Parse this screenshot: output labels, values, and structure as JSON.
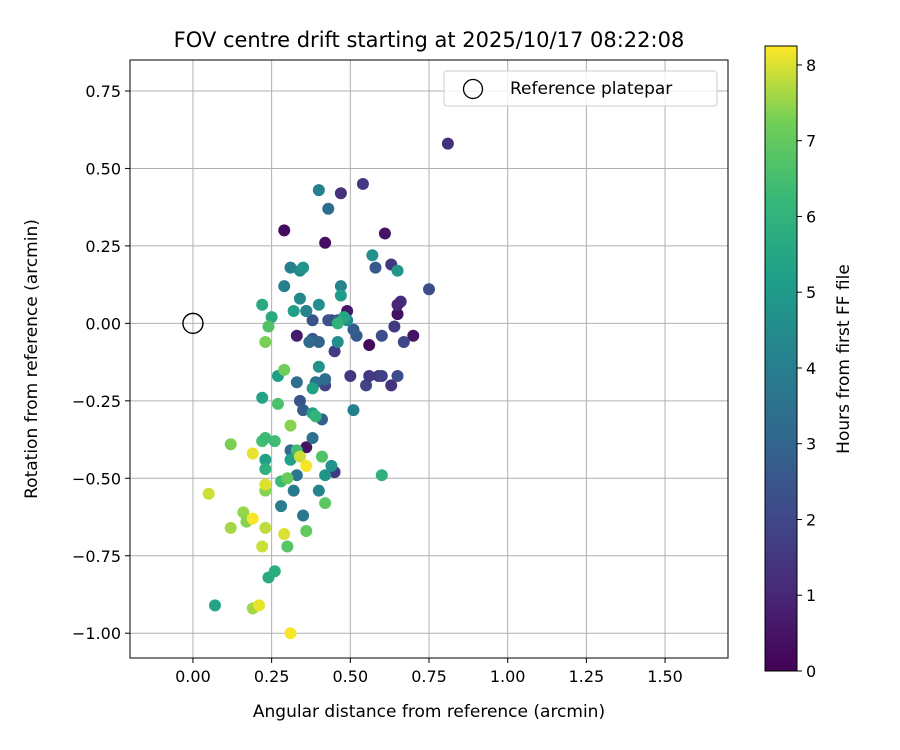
{
  "chart_data": {
    "type": "scatter",
    "title": "FOV centre drift starting at 2025/10/17 08:22:08",
    "xlabel": "Angular distance from reference (arcmin)",
    "ylabel": "Rotation from reference (arcmin)",
    "xlim": [
      -0.2,
      1.7
    ],
    "ylim": [
      -1.08,
      0.85
    ],
    "xticks": [
      0.0,
      0.25,
      0.5,
      0.75,
      1.0,
      1.25,
      1.5
    ],
    "xtick_labels": [
      "0.00",
      "0.25",
      "0.50",
      "0.75",
      "1.00",
      "1.25",
      "1.50"
    ],
    "yticks": [
      -1.0,
      -0.75,
      -0.5,
      -0.25,
      0.0,
      0.25,
      0.5,
      0.75
    ],
    "ytick_labels": [
      "−1.00",
      "−0.75",
      "−0.50",
      "−0.25",
      "0.00",
      "0.25",
      "0.50",
      "0.75"
    ],
    "grid": true,
    "legend": {
      "position": "top-right",
      "entries": [
        "Reference platepar"
      ]
    },
    "reference_point": {
      "x": 0.0,
      "y": 0.0,
      "label": "Reference platepar"
    },
    "colorbar": {
      "label": "Hours from first FF file",
      "colormap": "viridis",
      "range": [
        0,
        8.25
      ],
      "ticks": [
        0,
        1,
        2,
        3,
        4,
        5,
        6,
        7,
        8
      ],
      "tick_labels": [
        "0",
        "1",
        "2",
        "3",
        "4",
        "5",
        "6",
        "7",
        "8"
      ]
    },
    "points": [
      {
        "x": 0.29,
        "y": 0.3,
        "c": 0.3
      },
      {
        "x": 0.42,
        "y": 0.26,
        "c": 0.4
      },
      {
        "x": 0.61,
        "y": 0.29,
        "c": 0.5
      },
      {
        "x": 0.56,
        "y": -0.07,
        "c": 0.2
      },
      {
        "x": 0.65,
        "y": 0.03,
        "c": 0.4
      },
      {
        "x": 0.7,
        "y": -0.04,
        "c": 0.5
      },
      {
        "x": 0.49,
        "y": 0.04,
        "c": 0.6
      },
      {
        "x": 0.33,
        "y": -0.04,
        "c": 0.7
      },
      {
        "x": 0.36,
        "y": -0.4,
        "c": 0.5
      },
      {
        "x": 0.81,
        "y": 0.58,
        "c": 1.3
      },
      {
        "x": 0.47,
        "y": 0.42,
        "c": 1.3
      },
      {
        "x": 0.54,
        "y": 0.45,
        "c": 1.6
      },
      {
        "x": 0.66,
        "y": 0.07,
        "c": 1.2
      },
      {
        "x": 0.65,
        "y": 0.06,
        "c": 1.0
      },
      {
        "x": 0.63,
        "y": 0.19,
        "c": 1.5
      },
      {
        "x": 0.64,
        "y": -0.01,
        "c": 1.6
      },
      {
        "x": 0.59,
        "y": -0.17,
        "c": 1.4
      },
      {
        "x": 0.6,
        "y": -0.17,
        "c": 1.8
      },
      {
        "x": 0.63,
        "y": -0.2,
        "c": 1.4
      },
      {
        "x": 0.55,
        "y": -0.2,
        "c": 1.9
      },
      {
        "x": 0.56,
        "y": -0.17,
        "c": 1.6
      },
      {
        "x": 0.5,
        "y": -0.17,
        "c": 1.5
      },
      {
        "x": 0.45,
        "y": -0.09,
        "c": 1.7
      },
      {
        "x": 0.44,
        "y": 0.01,
        "c": 1.8
      },
      {
        "x": 0.45,
        "y": -0.48,
        "c": 1.6
      },
      {
        "x": 0.42,
        "y": -0.2,
        "c": 1.9
      },
      {
        "x": 0.36,
        "y": 0.04,
        "c": 1.8
      },
      {
        "x": 0.6,
        "y": -0.04,
        "c": 2.2
      },
      {
        "x": 0.67,
        "y": -0.06,
        "c": 2.0
      },
      {
        "x": 0.65,
        "y": -0.17,
        "c": 2.2
      },
      {
        "x": 0.75,
        "y": 0.11,
        "c": 2.2
      },
      {
        "x": 0.58,
        "y": 0.18,
        "c": 2.6
      },
      {
        "x": 0.52,
        "y": -0.04,
        "c": 2.6
      },
      {
        "x": 0.51,
        "y": -0.02,
        "c": 2.7
      },
      {
        "x": 0.46,
        "y": 0.01,
        "c": 2.5
      },
      {
        "x": 0.43,
        "y": 0.01,
        "c": 2.4
      },
      {
        "x": 0.38,
        "y": 0.01,
        "c": 2.4
      },
      {
        "x": 0.38,
        "y": -0.05,
        "c": 2.6
      },
      {
        "x": 0.34,
        "y": -0.25,
        "c": 2.4
      },
      {
        "x": 0.35,
        "y": -0.28,
        "c": 2.7
      },
      {
        "x": 0.41,
        "y": -0.31,
        "c": 2.8
      },
      {
        "x": 0.43,
        "y": 0.37,
        "c": 3.3
      },
      {
        "x": 0.37,
        "y": -0.06,
        "c": 3.2
      },
      {
        "x": 0.4,
        "y": -0.06,
        "c": 3.0
      },
      {
        "x": 0.42,
        "y": -0.18,
        "c": 3.3
      },
      {
        "x": 0.39,
        "y": -0.19,
        "c": 3.5
      },
      {
        "x": 0.33,
        "y": -0.19,
        "c": 3.4
      },
      {
        "x": 0.38,
        "y": -0.37,
        "c": 3.4
      },
      {
        "x": 0.31,
        "y": -0.41,
        "c": 3.2
      },
      {
        "x": 0.33,
        "y": -0.49,
        "c": 3.6
      },
      {
        "x": 0.32,
        "y": -0.54,
        "c": 3.8
      },
      {
        "x": 0.35,
        "y": -0.62,
        "c": 3.7
      },
      {
        "x": 0.28,
        "y": -0.59,
        "c": 3.9
      },
      {
        "x": 0.4,
        "y": -0.54,
        "c": 4.2
      },
      {
        "x": 0.51,
        "y": -0.28,
        "c": 4.1
      },
      {
        "x": 0.47,
        "y": 0.12,
        "c": 4.2
      },
      {
        "x": 0.4,
        "y": 0.43,
        "c": 4.1
      },
      {
        "x": 0.29,
        "y": 0.12,
        "c": 4.0
      },
      {
        "x": 0.31,
        "y": 0.18,
        "c": 4.1
      },
      {
        "x": 0.34,
        "y": 0.17,
        "c": 4.4
      },
      {
        "x": 0.35,
        "y": 0.18,
        "c": 4.8
      },
      {
        "x": 0.4,
        "y": 0.06,
        "c": 4.6
      },
      {
        "x": 0.34,
        "y": 0.08,
        "c": 4.4
      },
      {
        "x": 0.36,
        "y": 0.04,
        "c": 4.2
      },
      {
        "x": 0.46,
        "y": -0.06,
        "c": 4.5
      },
      {
        "x": 0.49,
        "y": 0.01,
        "c": 4.5
      },
      {
        "x": 0.57,
        "y": 0.22,
        "c": 4.7
      },
      {
        "x": 0.65,
        "y": 0.17,
        "c": 4.9
      },
      {
        "x": 0.4,
        "y": -0.14,
        "c": 4.7
      },
      {
        "x": 0.42,
        "y": -0.49,
        "c": 4.8
      },
      {
        "x": 0.44,
        "y": -0.46,
        "c": 4.7
      },
      {
        "x": 0.27,
        "y": -0.17,
        "c": 5.2
      },
      {
        "x": 0.32,
        "y": 0.04,
        "c": 5.3
      },
      {
        "x": 0.47,
        "y": 0.09,
        "c": 5.1
      },
      {
        "x": 0.48,
        "y": 0.02,
        "c": 5.5
      },
      {
        "x": 0.38,
        "y": -0.21,
        "c": 5.3
      },
      {
        "x": 0.38,
        "y": -0.29,
        "c": 5.4
      },
      {
        "x": 0.31,
        "y": -0.44,
        "c": 5.3
      },
      {
        "x": 0.22,
        "y": -0.24,
        "c": 5.4
      },
      {
        "x": 0.23,
        "y": -0.44,
        "c": 5.3
      },
      {
        "x": 0.24,
        "y": -0.82,
        "c": 5.6
      },
      {
        "x": 0.07,
        "y": -0.91,
        "c": 5.4
      },
      {
        "x": 0.22,
        "y": 0.06,
        "c": 5.6
      },
      {
        "x": 0.25,
        "y": 0.02,
        "c": 5.6
      },
      {
        "x": 0.6,
        "y": -0.49,
        "c": 5.9
      },
      {
        "x": 0.26,
        "y": -0.8,
        "c": 5.8
      },
      {
        "x": 0.46,
        "y": 0.0,
        "c": 6.0
      },
      {
        "x": 0.39,
        "y": -0.3,
        "c": 6.1
      },
      {
        "x": 0.33,
        "y": -0.41,
        "c": 6.4
      },
      {
        "x": 0.28,
        "y": -0.51,
        "c": 6.3
      },
      {
        "x": 0.23,
        "y": -0.47,
        "c": 5.9
      },
      {
        "x": 0.26,
        "y": -0.38,
        "c": 6.4
      },
      {
        "x": 0.22,
        "y": -0.38,
        "c": 6.5
      },
      {
        "x": 0.23,
        "y": -0.37,
        "c": 6.3
      },
      {
        "x": 0.27,
        "y": -0.26,
        "c": 6.6
      },
      {
        "x": 0.24,
        "y": -0.01,
        "c": 6.7
      },
      {
        "x": 0.41,
        "y": -0.43,
        "c": 6.7
      },
      {
        "x": 0.42,
        "y": -0.58,
        "c": 6.9
      },
      {
        "x": 0.36,
        "y": -0.67,
        "c": 7.0
      },
      {
        "x": 0.3,
        "y": -0.72,
        "c": 6.8
      },
      {
        "x": 0.29,
        "y": -0.15,
        "c": 7.2
      },
      {
        "x": 0.23,
        "y": -0.06,
        "c": 7.3
      },
      {
        "x": 0.3,
        "y": -0.5,
        "c": 7.1
      },
      {
        "x": 0.31,
        "y": -0.33,
        "c": 7.4
      },
      {
        "x": 0.12,
        "y": -0.39,
        "c": 7.3
      },
      {
        "x": 0.23,
        "y": -0.54,
        "c": 7.4
      },
      {
        "x": 0.12,
        "y": -0.66,
        "c": 7.6
      },
      {
        "x": 0.16,
        "y": -0.61,
        "c": 7.5
      },
      {
        "x": 0.17,
        "y": -0.64,
        "c": 7.4
      },
      {
        "x": 0.19,
        "y": -0.92,
        "c": 7.6
      },
      {
        "x": 0.23,
        "y": -0.66,
        "c": 7.8
      },
      {
        "x": 0.22,
        "y": -0.72,
        "c": 7.9
      },
      {
        "x": 0.05,
        "y": -0.55,
        "c": 7.9
      },
      {
        "x": 0.19,
        "y": -0.42,
        "c": 8.1
      },
      {
        "x": 0.23,
        "y": -0.52,
        "c": 8.0
      },
      {
        "x": 0.34,
        "y": -0.43,
        "c": 7.9
      },
      {
        "x": 0.36,
        "y": -0.46,
        "c": 8.2
      },
      {
        "x": 0.29,
        "y": -0.68,
        "c": 8.0
      },
      {
        "x": 0.19,
        "y": -0.63,
        "c": 8.2
      },
      {
        "x": 0.21,
        "y": -0.91,
        "c": 8.1
      },
      {
        "x": 0.31,
        "y": -1.0,
        "c": 8.2
      }
    ]
  }
}
